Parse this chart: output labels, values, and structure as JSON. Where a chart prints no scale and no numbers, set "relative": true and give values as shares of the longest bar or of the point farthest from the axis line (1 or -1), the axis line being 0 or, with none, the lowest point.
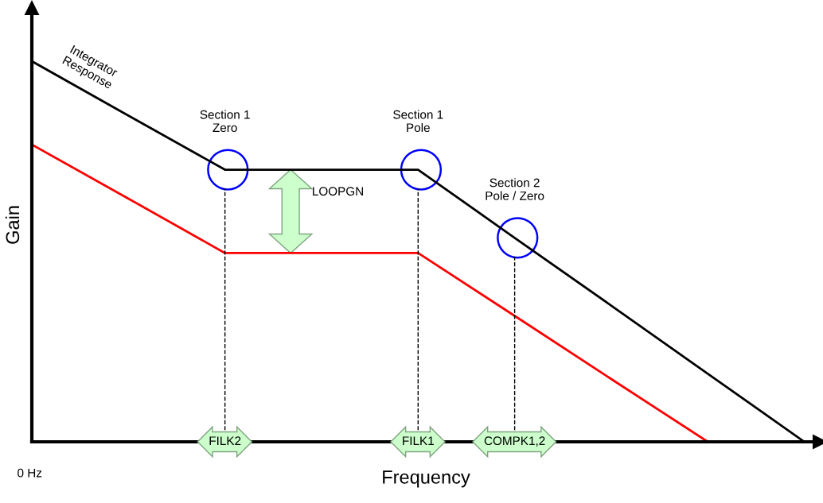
{
  "chart_data": {
    "type": "line",
    "relative": true,
    "xlabel": "Frequency",
    "ylabel": "Gain",
    "categories": [
      null,
      null,
      null,
      null,
      null,
      null,
      null,
      null,
      null
    ],
    "series": [
      {
        "color": "#000000",
        "values": [
          1,
          0.857,
          0.715,
          0.715,
          0.715,
          0.536,
          0.358,
          0.179,
          0
        ]
      },
      {
        "color": "#ff0000",
        "values": [
          0.781,
          0.639,
          0.496,
          0.496,
          0.496,
          0.331,
          0.165,
          0,
          null
        ]
      }
    ],
    "annotations": [
      "Section 1\nZero",
      "Section 1\nPole",
      "Section 2\nPole / Zero",
      "Integrator\nResponse",
      "LOOPGN",
      "FILK2",
      "FILK1",
      "COMPK1,2",
      "0 Hz"
    ],
    "marker": "none",
    "line_style": "solid"
  }
}
